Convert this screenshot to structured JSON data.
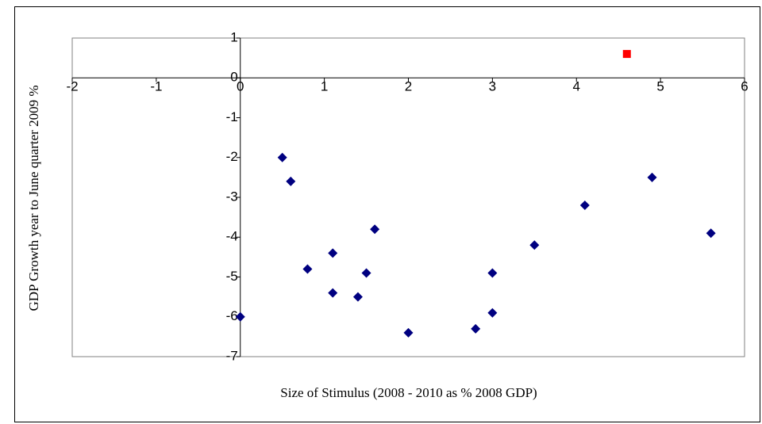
{
  "chart_data": {
    "type": "scatter",
    "x_label": "Size of Stimulus (2008 - 2010 as % 2008 GDP)",
    "y_label": "GDP Growth year to June quarter 2009 %",
    "xlim": [
      -2,
      6
    ],
    "xticks": [
      -2,
      -1,
      0,
      1,
      2,
      3,
      4,
      5,
      6
    ],
    "ylim": [
      -7,
      1
    ],
    "yticks": [
      -7,
      -6,
      -5,
      -4,
      -3,
      -2,
      -1,
      0,
      1
    ],
    "series": [
      {
        "color": "#000080",
        "marker": "diamond",
        "x": [
          0,
          0.5,
          0.6,
          0.8,
          1.1,
          1.1,
          1.4,
          1.5,
          1.6,
          2,
          2.8,
          3,
          3,
          3.5,
          4.1,
          4.9,
          5.6
        ],
        "values": [
          -6,
          -2,
          -2.6,
          -4.8,
          -4.4,
          -5.4,
          -5.5,
          -4.9,
          -3.8,
          -6.4,
          -6.3,
          -4.9,
          -5.9,
          -4.2,
          -3.2,
          -2.5,
          -3.9
        ]
      },
      {
        "color": "#ff0000",
        "marker": "square",
        "x": [
          4.6
        ],
        "values": [
          0.6
        ]
      }
    ]
  }
}
